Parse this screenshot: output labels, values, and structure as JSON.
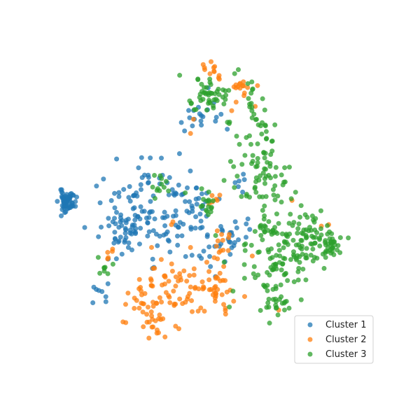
{
  "chart_data": {
    "type": "scatter",
    "title": "",
    "xlabel": "",
    "ylabel": "",
    "xlim": [
      0,
      100
    ],
    "ylim": [
      0,
      100
    ],
    "grid": false,
    "axes_visible": false,
    "legend_position": "bottom-right",
    "point_alpha": 0.75,
    "series": [
      {
        "name": "Cluster 1",
        "color": "#1f77b4",
        "regions": [
          {
            "center": [
              -1.0,
              52.2
            ],
            "spread": [
              1.4,
              1.8
            ],
            "count": 60,
            "seed": 11
          },
          {
            "center": [
              25.0,
              48.5
            ],
            "spread": [
              7.0,
              8.0
            ],
            "count": 110,
            "seed": 12
          },
          {
            "center": [
              17.0,
              42.0
            ],
            "spread": [
              2.6,
              3.6
            ],
            "count": 26,
            "seed": 13
          },
          {
            "center": [
              42.0,
              49.0
            ],
            "spread": [
              4.0,
              6.0
            ],
            "count": 40,
            "seed": 14
          },
          {
            "center": [
              44.0,
              82.0
            ],
            "spread": [
              3.6,
              4.0
            ],
            "count": 18,
            "seed": 15
          },
          {
            "center": [
              55.5,
              41.0
            ],
            "spread": [
              3.0,
              4.0
            ],
            "count": 22,
            "seed": 16
          },
          {
            "center": [
              58.5,
              60.0
            ],
            "spread": [
              1.5,
              3.0
            ],
            "count": 6,
            "seed": 17
          },
          {
            "center": [
              12.5,
              20.0
            ],
            "spread": [
              2.5,
              2.5
            ],
            "count": 8,
            "seed": 18
          },
          {
            "center": [
              48.0,
              32.0
            ],
            "spread": [
              3.0,
              3.0
            ],
            "count": 10,
            "seed": 19
          }
        ],
        "points": [
          [
            5.0,
            43.0
          ],
          [
            53.5,
            77.5
          ],
          [
            47.0,
            92.0
          ]
        ]
      },
      {
        "name": "Cluster 2",
        "color": "#ff7f0e",
        "regions": [
          {
            "center": [
              34.5,
              21.5
            ],
            "spread": [
              6.5,
              5.5
            ],
            "count": 60,
            "seed": 21
          },
          {
            "center": [
              50.0,
              23.0
            ],
            "spread": [
              3.0,
              4.5
            ],
            "count": 38,
            "seed": 22
          },
          {
            "center": [
              26.0,
              9.5
            ],
            "spread": [
              5.0,
              3.5
            ],
            "count": 22,
            "seed": 23
          },
          {
            "center": [
              24.0,
              18.0
            ],
            "spread": [
              2.5,
              3.5
            ],
            "count": 14,
            "seed": 24
          },
          {
            "center": [
              48.0,
              98.0
            ],
            "spread": [
              2.0,
              2.0
            ],
            "count": 12,
            "seed": 25
          },
          {
            "center": [
              58.0,
              92.0
            ],
            "spread": [
              2.6,
              1.4
            ],
            "count": 14,
            "seed": 26
          },
          {
            "center": [
              51.5,
              36.5
            ],
            "spread": [
              2.0,
              3.0
            ],
            "count": 12,
            "seed": 27
          },
          {
            "center": [
              13.5,
              32.0
            ],
            "spread": [
              2.0,
              2.0
            ],
            "count": 5,
            "seed": 28
          },
          {
            "center": [
              48.5,
              52.5
            ],
            "spread": [
              1.5,
              2.0
            ],
            "count": 6,
            "seed": 29
          }
        ],
        "points": [
          [
            42.0,
            81.0
          ],
          [
            41.0,
            76.0
          ],
          [
            55.0,
            84.0
          ],
          [
            56.5,
            87.0
          ],
          [
            63.0,
            85.5
          ],
          [
            35.0,
            45.0
          ],
          [
            71.0,
            14.0
          ],
          [
            75.5,
            52.5
          ],
          [
            85.5,
            43.5
          ],
          [
            88.0,
            44.0
          ],
          [
            62.0,
            33.0
          ],
          [
            41.0,
            36.0
          ],
          [
            34.5,
            44.0
          ]
        ]
      },
      {
        "name": "Cluster 3",
        "color": "#2ca02c",
        "regions": [
          {
            "center": [
              71.0,
              34.0
            ],
            "spread": [
              6.5,
              8.0
            ],
            "count": 120,
            "seed": 31
          },
          {
            "center": [
              66.0,
              60.0
            ],
            "spread": [
              6.0,
              8.0
            ],
            "count": 70,
            "seed": 32
          },
          {
            "center": [
              63.5,
              76.0
            ],
            "spread": [
              4.5,
              5.0
            ],
            "count": 25,
            "seed": 33
          },
          {
            "center": [
              47.0,
              90.0
            ],
            "spread": [
              4.0,
              3.5
            ],
            "count": 50,
            "seed": 34
          },
          {
            "center": [
              81.5,
              39.5
            ],
            "spread": [
              4.0,
              4.0
            ],
            "count": 40,
            "seed": 35
          },
          {
            "center": [
              88.5,
              36.0
            ],
            "spread": [
              3.0,
              2.0
            ],
            "count": 35,
            "seed": 36
          },
          {
            "center": [
              70.0,
              17.0
            ],
            "spread": [
              2.5,
              3.0
            ],
            "count": 20,
            "seed": 37
          },
          {
            "center": [
              47.5,
              51.0
            ],
            "spread": [
              2.5,
              2.0
            ],
            "count": 16,
            "seed": 38
          },
          {
            "center": [
              31.0,
              58.0
            ],
            "spread": [
              2.5,
              2.0
            ],
            "count": 12,
            "seed": 39
          },
          {
            "center": [
              61.5,
              88.5
            ],
            "spread": [
              1.0,
              3.5
            ],
            "count": 12,
            "seed": 40
          },
          {
            "center": [
              12.5,
              29.5
            ],
            "spread": [
              1.5,
              2.0
            ],
            "count": 8,
            "seed": 41
          }
        ],
        "points": [
          [
            56.0,
            97.0
          ],
          [
            60.5,
            93.5
          ]
        ]
      }
    ]
  },
  "legend": {
    "items": [
      {
        "label": "Cluster 1",
        "color": "#1f77b4"
      },
      {
        "label": "Cluster 2",
        "color": "#ff7f0e"
      },
      {
        "label": "Cluster 3",
        "color": "#2ca02c"
      }
    ]
  }
}
